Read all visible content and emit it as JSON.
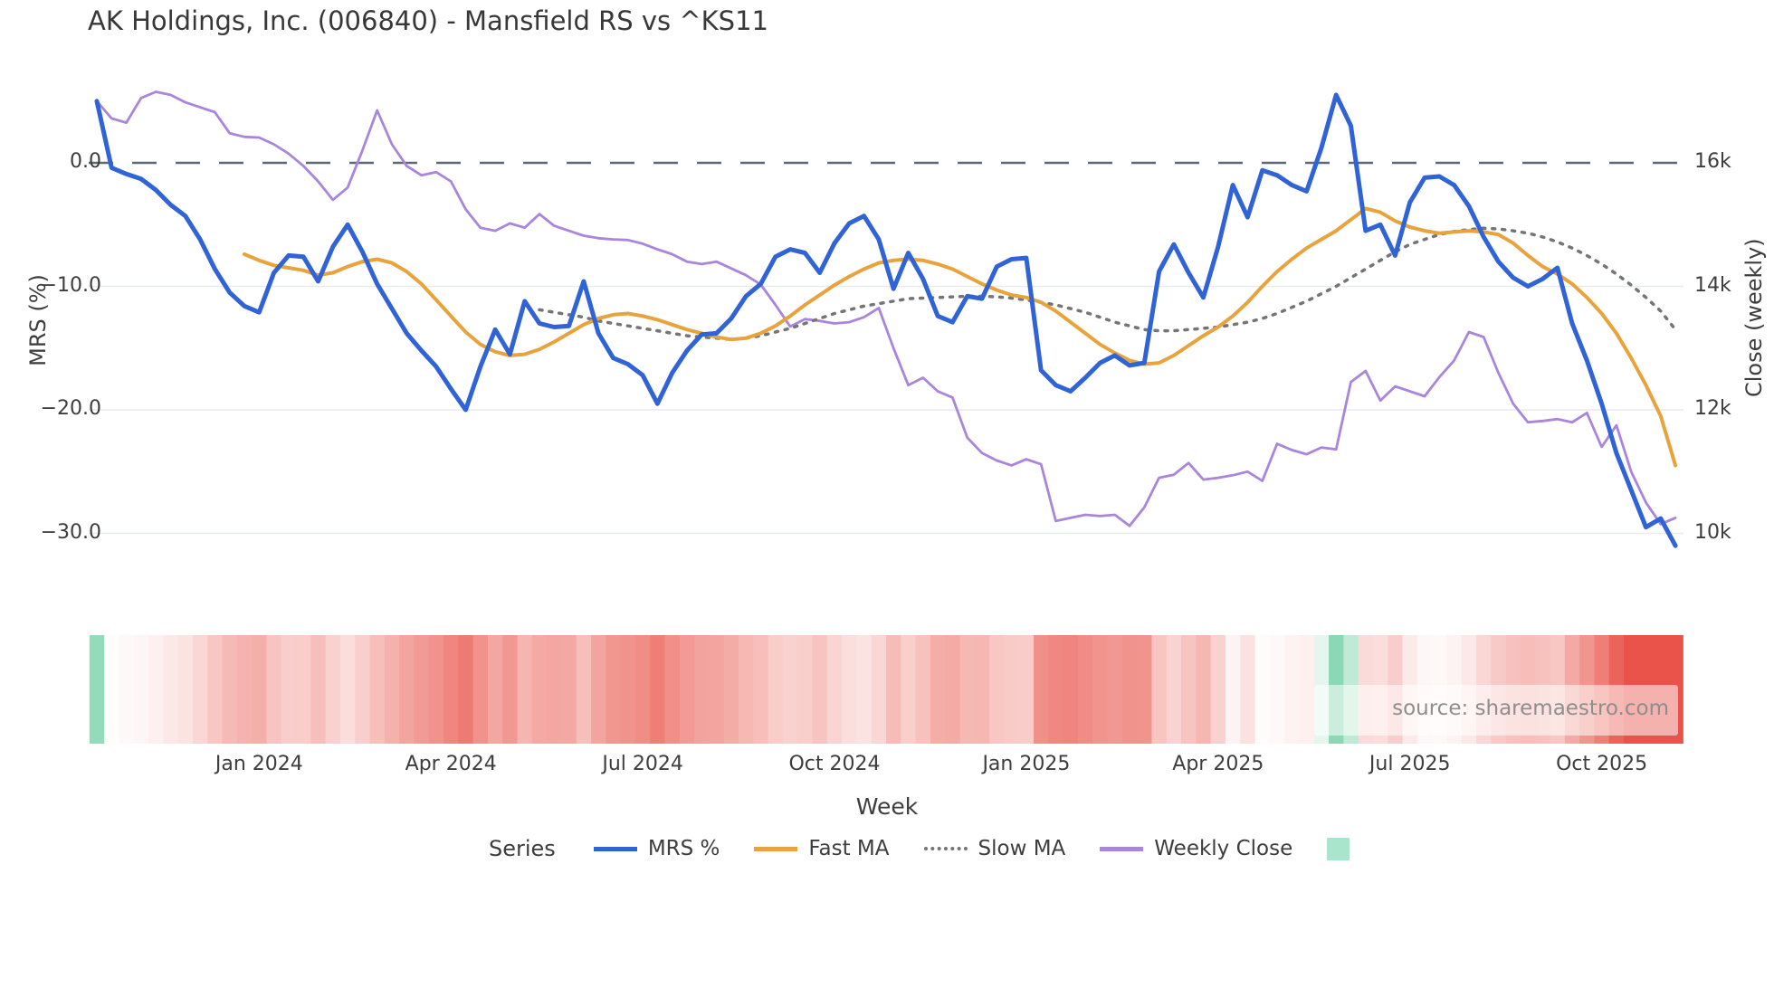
{
  "title": "AK Holdings, Inc. (006840) - Mansfield RS vs ^KS11",
  "source": "source: sharemaestro.com",
  "axes": {
    "left": {
      "title": "MRS (%)",
      "tick_labels": [
        "0.0",
        "−10.0",
        "−20.0",
        "−30.0"
      ],
      "tick_values": [
        0,
        -10,
        -20,
        -30
      ]
    },
    "right": {
      "title": "Close (weekly)",
      "tick_labels": [
        "16k",
        "14k",
        "12k",
        "10k"
      ],
      "tick_values": [
        16000,
        14000,
        12000,
        10000
      ]
    },
    "x": {
      "title": "Week",
      "tick_labels": [
        "Jan 2024",
        "Apr 2024",
        "Jul 2024",
        "Oct 2024",
        "Jan 2025",
        "Apr 2025",
        "Jul 2025",
        "Oct 2025"
      ],
      "tick_week_indices": [
        11,
        24,
        37,
        50,
        63,
        76,
        89,
        102
      ]
    }
  },
  "legend": {
    "title": "Series",
    "items": [
      {
        "label": "MRS %",
        "color": "#2f63d6",
        "style": "solid"
      },
      {
        "label": "Fast MA",
        "color": "#e8a33d",
        "style": "solid"
      },
      {
        "label": "Slow MA",
        "color": "#757575",
        "style": "dotted"
      },
      {
        "label": "Weekly Close",
        "color": "#a985dc",
        "style": "solid"
      }
    ],
    "extra_swatch_color": "#a9e4cd"
  },
  "colors": {
    "zero_line": "#5f6875",
    "gridline": "#e8eaee",
    "heat_negative": "#e95349",
    "heat_positive": "#7fd4ad",
    "text": "#3d3d3d"
  },
  "chart_data": {
    "type": "line",
    "x_unit": "week_index",
    "n_weeks": 108,
    "ylim_left": [
      -35,
      6.5
    ],
    "ylim_right": [
      9000,
      17300
    ],
    "grid": "horizontal-only",
    "zero_reference_line": 0,
    "legend_position": "bottom-center",
    "series": [
      {
        "name": "MRS %",
        "axis": "left",
        "color": "#2f63d6",
        "width": 5,
        "dash": "solid",
        "values": [
          5.0,
          -0.4,
          -0.9,
          -1.3,
          -2.2,
          -3.4,
          -4.3,
          -6.2,
          -8.6,
          -10.5,
          -11.6,
          -12.1,
          -8.9,
          -7.5,
          -7.6,
          -9.6,
          -6.8,
          -5.0,
          -7.2,
          -9.8,
          -11.8,
          -13.8,
          -15.2,
          -16.5,
          -18.3,
          -20.0,
          -16.5,
          -13.5,
          -15.5,
          -11.2,
          -13.0,
          -13.3,
          -13.2,
          -9.6,
          -13.8,
          -15.8,
          -16.3,
          -17.2,
          -19.5,
          -17.0,
          -15.2,
          -13.9,
          -13.8,
          -12.6,
          -10.8,
          -9.8,
          -7.6,
          -7.0,
          -7.3,
          -8.9,
          -6.5,
          -4.9,
          -4.3,
          -6.2,
          -10.2,
          -7.3,
          -9.4,
          -12.4,
          -12.9,
          -10.8,
          -11.0,
          -8.4,
          -7.8,
          -7.7,
          -16.8,
          -18.0,
          -18.5,
          -17.4,
          -16.2,
          -15.6,
          -16.4,
          -16.2,
          -8.8,
          -6.6,
          -8.9,
          -10.9,
          -6.8,
          -1.8,
          -4.4,
          -0.6,
          -1.0,
          -1.8,
          -2.3,
          1.2,
          5.5,
          3.0,
          -5.5,
          -5.0,
          -7.5,
          -3.2,
          -1.2,
          -1.1,
          -1.8,
          -3.5,
          -6.0,
          -8.0,
          -9.3,
          -10.0,
          -9.4,
          -8.5,
          -13.0,
          -16.0,
          -19.5,
          -23.5,
          -26.5,
          -29.5,
          -28.8,
          -31.0
        ]
      },
      {
        "name": "Fast MA",
        "axis": "left",
        "color": "#e8a33d",
        "width": 4,
        "dash": "solid",
        "values": [
          null,
          null,
          null,
          null,
          null,
          null,
          null,
          null,
          null,
          null,
          -7.4,
          -7.9,
          -8.3,
          -8.5,
          -8.7,
          -9.1,
          -8.9,
          -8.4,
          -8.0,
          -7.8,
          -8.1,
          -8.8,
          -9.8,
          -11.1,
          -12.4,
          -13.7,
          -14.7,
          -15.3,
          -15.6,
          -15.5,
          -15.1,
          -14.5,
          -13.8,
          -13.1,
          -12.6,
          -12.3,
          -12.2,
          -12.4,
          -12.7,
          -13.1,
          -13.5,
          -13.8,
          -14.1,
          -14.3,
          -14.2,
          -13.8,
          -13.2,
          -12.4,
          -11.5,
          -10.7,
          -9.9,
          -9.2,
          -8.6,
          -8.1,
          -7.9,
          -7.8,
          -7.9,
          -8.2,
          -8.6,
          -9.2,
          -9.8,
          -10.3,
          -10.7,
          -10.9,
          -11.3,
          -12.0,
          -12.9,
          -13.8,
          -14.7,
          -15.4,
          -16.0,
          -16.3,
          -16.2,
          -15.6,
          -14.8,
          -14.0,
          -13.3,
          -12.4,
          -11.3,
          -10.0,
          -8.8,
          -7.8,
          -6.9,
          -6.2,
          -5.5,
          -4.6,
          -3.7,
          -4.0,
          -4.7,
          -5.2,
          -5.5,
          -5.7,
          -5.6,
          -5.5,
          -5.6,
          -5.8,
          -6.5,
          -7.5,
          -8.4,
          -9.0,
          -9.8,
          -10.9,
          -12.2,
          -13.8,
          -15.8,
          -18.0,
          -20.5,
          -24.5
        ]
      },
      {
        "name": "Slow MA",
        "axis": "left",
        "color": "#757575",
        "width": 3.5,
        "dash": "dotted",
        "values": [
          null,
          null,
          null,
          null,
          null,
          null,
          null,
          null,
          null,
          null,
          null,
          null,
          null,
          null,
          null,
          null,
          null,
          null,
          null,
          null,
          null,
          null,
          null,
          null,
          null,
          null,
          null,
          null,
          null,
          null,
          -11.9,
          -12.1,
          -12.3,
          -12.5,
          -12.8,
          -13.0,
          -13.2,
          -13.4,
          -13.6,
          -13.8,
          -14.0,
          -14.1,
          -14.2,
          -14.3,
          -14.2,
          -14.0,
          -13.7,
          -13.4,
          -13.0,
          -12.6,
          -12.2,
          -11.9,
          -11.6,
          -11.4,
          -11.2,
          -11.0,
          -10.95,
          -10.9,
          -10.85,
          -10.8,
          -10.8,
          -10.85,
          -10.95,
          -11.1,
          -11.3,
          -11.5,
          -11.8,
          -12.1,
          -12.5,
          -12.9,
          -13.2,
          -13.5,
          -13.6,
          -13.6,
          -13.5,
          -13.4,
          -13.3,
          -13.1,
          -12.9,
          -12.6,
          -12.2,
          -11.7,
          -11.2,
          -10.6,
          -10.0,
          -9.3,
          -8.6,
          -7.9,
          -7.2,
          -6.6,
          -6.2,
          -5.8,
          -5.55,
          -5.4,
          -5.3,
          -5.35,
          -5.5,
          -5.7,
          -6.0,
          -6.4,
          -6.9,
          -7.5,
          -8.2,
          -9.0,
          -9.9,
          -10.9,
          -12.0,
          -13.5
        ]
      },
      {
        "name": "Weekly Close",
        "axis": "right",
        "color": "#a985dc",
        "width": 2.8,
        "dash": "solid",
        "values": [
          17000,
          16720,
          16650,
          17050,
          17150,
          17100,
          16980,
          16900,
          16820,
          16480,
          16420,
          16410,
          16300,
          16150,
          15950,
          15700,
          15400,
          15600,
          16200,
          16850,
          16300,
          15950,
          15800,
          15850,
          15700,
          15250,
          14950,
          14900,
          15020,
          14950,
          15170,
          14980,
          14900,
          14820,
          14780,
          14760,
          14750,
          14690,
          14600,
          14520,
          14400,
          14360,
          14400,
          14290,
          14180,
          14030,
          13700,
          13350,
          13470,
          13440,
          13400,
          13420,
          13500,
          13650,
          13000,
          12400,
          12520,
          12300,
          12200,
          11550,
          11300,
          11180,
          11100,
          11200,
          11120,
          10200,
          10250,
          10300,
          10280,
          10300,
          10120,
          10420,
          10900,
          10950,
          11140,
          10870,
          10900,
          10940,
          11000,
          10850,
          11450,
          11350,
          11280,
          11390,
          11360,
          12450,
          12630,
          12150,
          12380,
          12300,
          12220,
          12530,
          12800,
          13260,
          13180,
          12600,
          12100,
          11800,
          11820,
          11850,
          11800,
          11950,
          11400,
          11750,
          11000,
          10500,
          10150,
          10250
        ]
      }
    ],
    "heatmap": {
      "derived_from": "MRS %",
      "description": "weekly heat strip under plot, red for negative MRS, mint for positive",
      "colormap": {
        "zero": "#ffffff",
        "negative": "#e95349",
        "neg_at": -26,
        "positive": "#7fd4ad",
        "pos_at": 6
      }
    }
  }
}
